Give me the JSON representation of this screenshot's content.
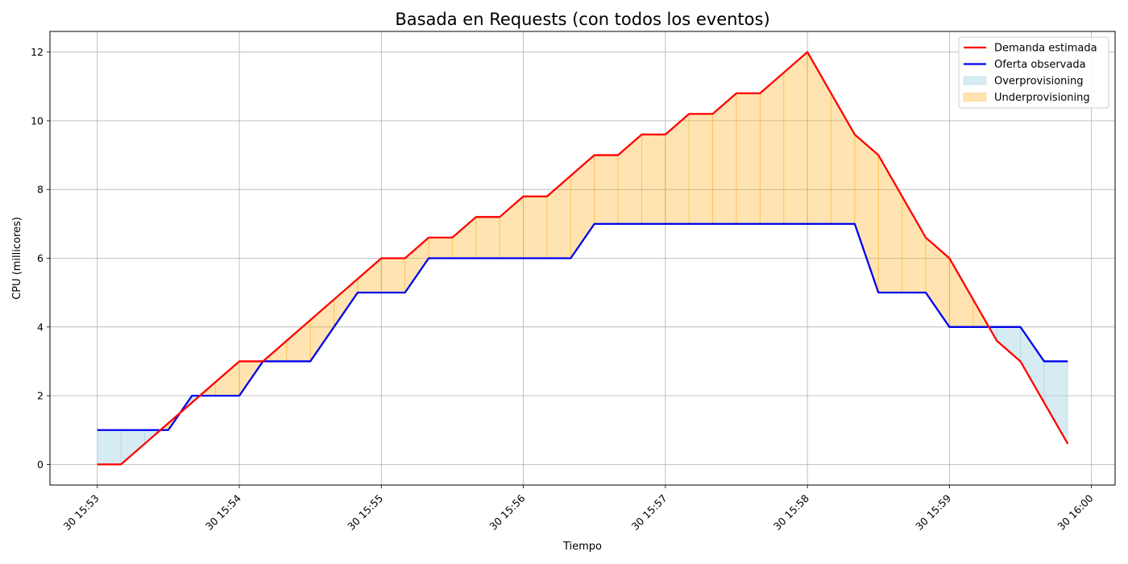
{
  "chart_data": {
    "type": "line",
    "title": "Basada en Requests (con todos los eventos)",
    "xlabel": "Tiempo",
    "ylabel": "CPU (millicores)",
    "x_start": "15:53:00",
    "x_step_seconds": 10,
    "x": [
      "15:53:00",
      "15:53:10",
      "15:53:20",
      "15:53:30",
      "15:53:40",
      "15:53:50",
      "15:54:00",
      "15:54:10",
      "15:54:20",
      "15:54:30",
      "15:54:40",
      "15:54:50",
      "15:55:00",
      "15:55:10",
      "15:55:20",
      "15:55:30",
      "15:55:40",
      "15:55:50",
      "15:56:00",
      "15:56:10",
      "15:56:20",
      "15:56:30",
      "15:56:40",
      "15:56:50",
      "15:57:00",
      "15:57:10",
      "15:57:20",
      "15:57:30",
      "15:57:40",
      "15:57:50",
      "15:58:00",
      "15:58:10",
      "15:58:20",
      "15:58:30",
      "15:58:40",
      "15:58:50",
      "15:59:00",
      "15:59:10",
      "15:59:20",
      "15:59:30",
      "15:59:40",
      "15:59:50"
    ],
    "series": [
      {
        "name": "Demanda estimada",
        "color": "#ff0000",
        "values": [
          0,
          0,
          0.6,
          1.2,
          1.8,
          2.4,
          3.0,
          3.0,
          3.6,
          4.2,
          4.8,
          5.4,
          6.0,
          6.0,
          6.6,
          6.6,
          7.2,
          7.2,
          7.8,
          7.8,
          8.4,
          9.0,
          9.0,
          9.6,
          9.6,
          10.2,
          10.2,
          10.8,
          10.8,
          11.4,
          12.0,
          10.8,
          9.6,
          9.0,
          7.8,
          6.6,
          6.0,
          4.8,
          3.6,
          3.0,
          1.8,
          0.6
        ]
      },
      {
        "name": "Oferta observada",
        "color": "#0000ee",
        "values": [
          1,
          1,
          1,
          1,
          2,
          2,
          2,
          3,
          3,
          3,
          4,
          5,
          5,
          5,
          6,
          6,
          6,
          6,
          6,
          6,
          6,
          7,
          7,
          7,
          7,
          7,
          7,
          7,
          7,
          7,
          7,
          7,
          7,
          5,
          5,
          5,
          4,
          4,
          4,
          4,
          3,
          3
        ]
      }
    ],
    "fills": [
      {
        "name": "Overprovisioning",
        "color": "#add8e6",
        "opacity": 0.5,
        "condition": "oferta > demanda"
      },
      {
        "name": "Underprovisioning",
        "color": "#ffa500",
        "opacity": 0.3,
        "condition": "demanda > oferta"
      }
    ],
    "x_ticks": [
      "30 15:53",
      "30 15:54",
      "30 15:55",
      "30 15:56",
      "30 15:57",
      "30 15:58",
      "30 15:59",
      "30 16:00"
    ],
    "y_ticks": [
      0,
      2,
      4,
      6,
      8,
      10,
      12
    ],
    "ylim": [
      -0.6,
      12.6
    ],
    "xlim": [
      "15:52:40",
      "16:00:10"
    ],
    "grid": true,
    "legend_position": "top-right",
    "legend": [
      "Demanda estimada",
      "Oferta observada",
      "Overprovisioning",
      "Underprovisioning"
    ]
  }
}
